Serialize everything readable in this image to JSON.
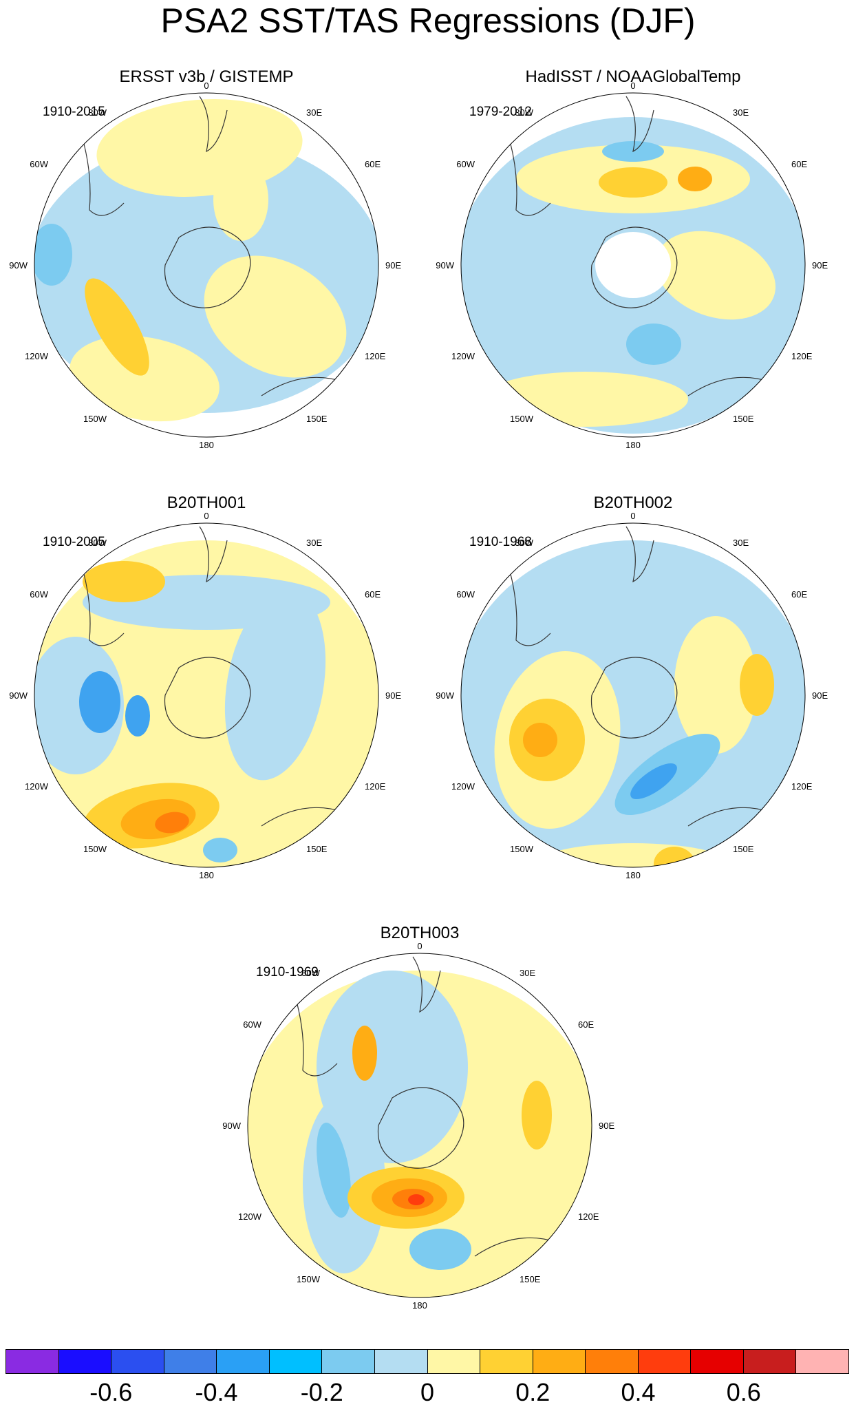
{
  "title": "PSA2 SST/TAS Regressions (DJF)",
  "panels": [
    {
      "id": "p1",
      "title": "ERSST v3b / GISTEMP",
      "period": "1910-2015"
    },
    {
      "id": "p2",
      "title": "HadISST / NOAAGlobalTemp",
      "period": "1979-2012"
    },
    {
      "id": "p3",
      "title": "B20TH001",
      "period": "1910-2005"
    },
    {
      "id": "p4",
      "title": "B20TH002",
      "period": "1910-1968"
    },
    {
      "id": "p5",
      "title": "B20TH003",
      "period": "1910-1969"
    }
  ],
  "map_labels": {
    "top": "0",
    "bottom": "180",
    "tl30": "30W",
    "tr30": "30E",
    "tl60": "60W",
    "tr60": "60E",
    "l90": "90W",
    "r90": "90E",
    "bl120": "120W",
    "br120": "120E",
    "bl150": "150W",
    "br150": "150E"
  },
  "colorbar": {
    "colors": [
      "#8a2be2",
      "#1a0dff",
      "#2b4ff0",
      "#3f7fe8",
      "#2aa0f5",
      "#00bfff",
      "#7ccbf0",
      "#b4ddf2",
      "#fff7a6",
      "#ffd133",
      "#ffad14",
      "#ff7f0a",
      "#ff3d0d",
      "#e60000",
      "#c81e1e",
      "#ffb3b3"
    ],
    "tick_labels": [
      "-0.6",
      "-0.4",
      "-0.2",
      "0",
      "0.2",
      "0.4",
      "0.6"
    ]
  },
  "chart_data": {
    "type": "heatmap",
    "projection": "south polar stereographic",
    "variable": "SST/TAS regression",
    "season": "DJF",
    "colorbar_min": -0.7,
    "colorbar_max": 0.7,
    "colorbar_interval": 0.1,
    "panels": [
      "ERSST v3b / GISTEMP",
      "HadISST / NOAAGlobalTemp",
      "B20TH001",
      "B20TH002",
      "B20TH003"
    ]
  }
}
